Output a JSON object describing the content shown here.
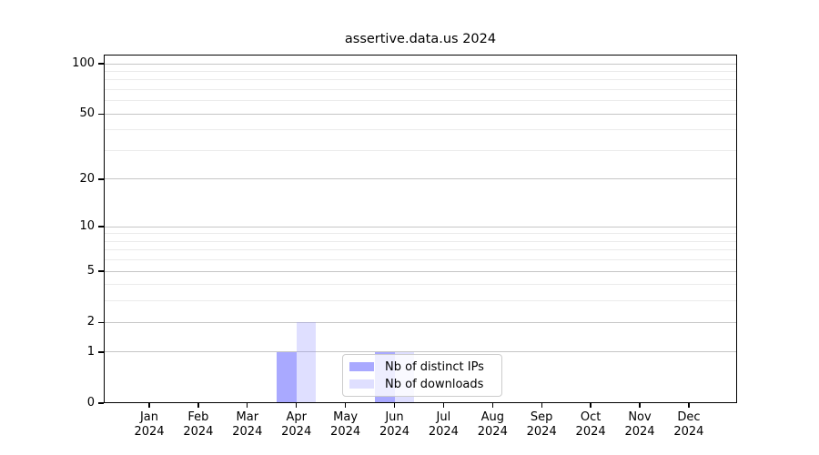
{
  "chart_data": {
    "type": "bar",
    "title": "assertive.data.us 2024",
    "categories": [
      "Jan",
      "Feb",
      "Mar",
      "Apr",
      "May",
      "Jun",
      "Jul",
      "Aug",
      "Sep",
      "Oct",
      "Nov",
      "Dec"
    ],
    "x_tick_year": "2024",
    "series": [
      {
        "name": "Nb of distinct IPs",
        "color": "#aaaaf7",
        "fill": "rgba(136,136,255,0.72)",
        "values": [
          0,
          0,
          0,
          1,
          0,
          1,
          0,
          0,
          0,
          0,
          0,
          0
        ]
      },
      {
        "name": "Nb of downloads",
        "color": "#dcdcfa",
        "fill": "rgba(136,136,255,0.27)",
        "values": [
          0,
          0,
          0,
          2,
          0,
          1,
          0,
          0,
          0,
          0,
          0,
          0
        ]
      }
    ],
    "yscale": "log1p",
    "yticks": [
      0,
      1,
      2,
      5,
      10,
      20,
      50,
      100
    ],
    "minor_yticks": [
      3,
      4,
      6,
      7,
      8,
      9,
      30,
      40,
      60,
      70,
      80,
      90
    ],
    "ylim": [
      0,
      113
    ],
    "grid": "horizontal",
    "legend_position": "inside-bottom-center"
  },
  "colors": {
    "axis": "#000000",
    "major_grid": "#c6c6c6",
    "minor_grid": "#ebebeb",
    "legend_border": "#cccccc",
    "legend_bg": "rgba(255,255,255,0.8)"
  }
}
